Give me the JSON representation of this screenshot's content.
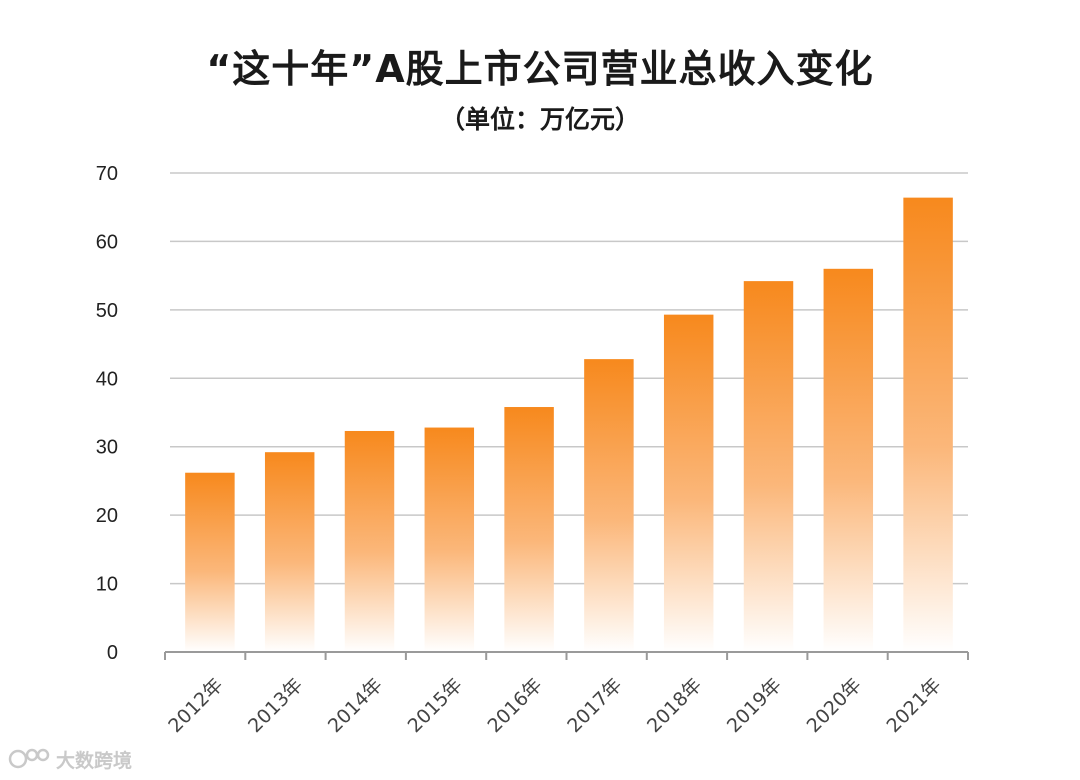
{
  "chart_data": {
    "type": "bar",
    "title": "“这十年”A股上市公司营业总收入变化",
    "subtitle": "（单位：万亿元）",
    "categories": [
      "2012年",
      "2013年",
      "2014年",
      "2015年",
      "2016年",
      "2017年",
      "2018年",
      "2019年",
      "2020年",
      "2021年"
    ],
    "values": [
      26.2,
      29.2,
      32.3,
      32.8,
      35.8,
      42.8,
      49.3,
      54.2,
      56.0,
      66.4
    ],
    "ylim": [
      0,
      70
    ],
    "yticks": [
      "0",
      "10",
      "20",
      "30",
      "40",
      "50",
      "60",
      "70"
    ],
    "grid": true,
    "bar_color_top": "#f7891d",
    "bar_color_bottom": "#ffffff"
  },
  "watermark": {
    "text": "大数跨境"
  }
}
